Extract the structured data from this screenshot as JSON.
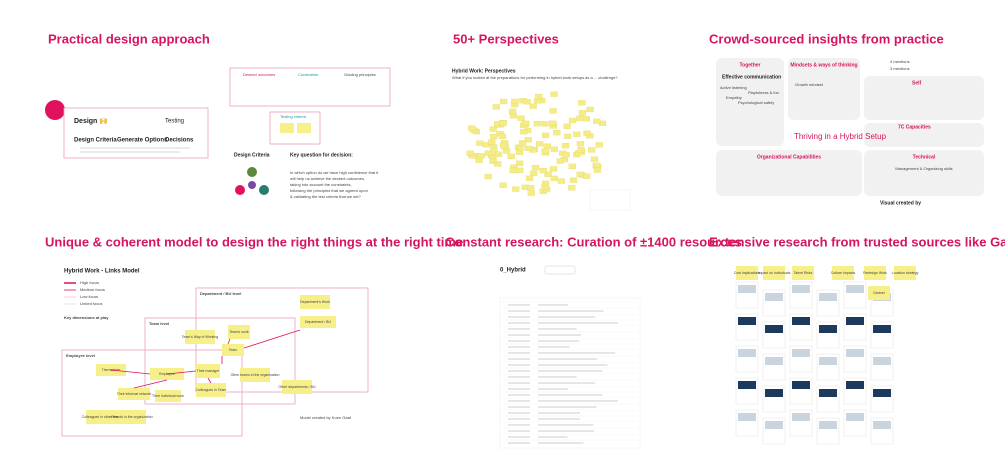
{
  "design_panel": {
    "title": "Practical design approach",
    "flow": {
      "design": "Design 🙌",
      "testing": "Testing",
      "criteria": "Design Criteria",
      "options": "Generate Options",
      "decisions": "Decisions"
    },
    "columns": [
      "Desired outcomes",
      "Constraints",
      "Guiding principles"
    ],
    "testing_criteria": "Testing criteria",
    "criteria_heading": "Design Criteria",
    "question_heading": "Key question for decision:",
    "question_lines": [
      "In which option do we have high confidence that it",
      "will help us achieve the desired outcomes,",
      "taking into account the constraints,",
      "following the principles that we agreed upon",
      "& validating the test criteria that we set?"
    ]
  },
  "perspectives_panel": {
    "title": "50+ Perspectives",
    "board_title": "Hybrid Work: Perspectives",
    "question": "What if you looked at the preparations for performing in hybrid work setups as a ... challenge?"
  },
  "crowd_panel": {
    "title": "Crowd-sourced insights from practice",
    "mentions": [
      "4 mentions",
      "3 mentions"
    ],
    "together": {
      "heading": "Together",
      "items": [
        "Effective communication",
        "Active listening",
        "Empathy",
        "Psychological safety",
        "Playfulness & fun"
      ]
    },
    "mindsets": {
      "heading": "Mindsets & ways of thinking",
      "items": [
        "Growth mindset"
      ]
    },
    "self": "Self",
    "capacities": "7C Capacities",
    "center": "Thriving in a Hybrid Setup",
    "org": "Organizational Capabilities",
    "technical": {
      "heading": "Technical",
      "items": [
        "Management & Organizing skills"
      ]
    },
    "credit": "Visual created by"
  },
  "model_panel": {
    "title": "Unique & coherent model to design the right things at the right time",
    "board_title": "Hybrid Work - Links Model",
    "legend": [
      "High focus",
      "Medium focus",
      "Low focus",
      "Linked focus"
    ],
    "dimensions": "Key dimensions at play",
    "levels": [
      "Department / BU level",
      "Team level",
      "Employee level"
    ],
    "nodes": [
      "Department / BU",
      "Department's Work",
      "Team's Way of Working",
      "Team's work",
      "Team",
      "Employee",
      "Their manager",
      "Colleagues in Team",
      "Themselves",
      "Their informal network",
      "Their individual work",
      "Colleagues in other teams",
      "Friends in the organization",
      "Other teams in the organisation",
      "Other departments / BU"
    ],
    "credit": "Model created by Koen Gaaf"
  },
  "research_panel": {
    "title": "Constant research: Curation of ±1400 resources",
    "board_title": "0_Hybrid"
  },
  "gartner_panel": {
    "title": "Extensive research from trusted sources like Gartner",
    "notes": [
      "Cost implications",
      "Impact on individuals",
      "Talent Risks",
      "Culture Impacts",
      "Redesign Work",
      "Location strategy",
      "Gartner"
    ]
  }
}
